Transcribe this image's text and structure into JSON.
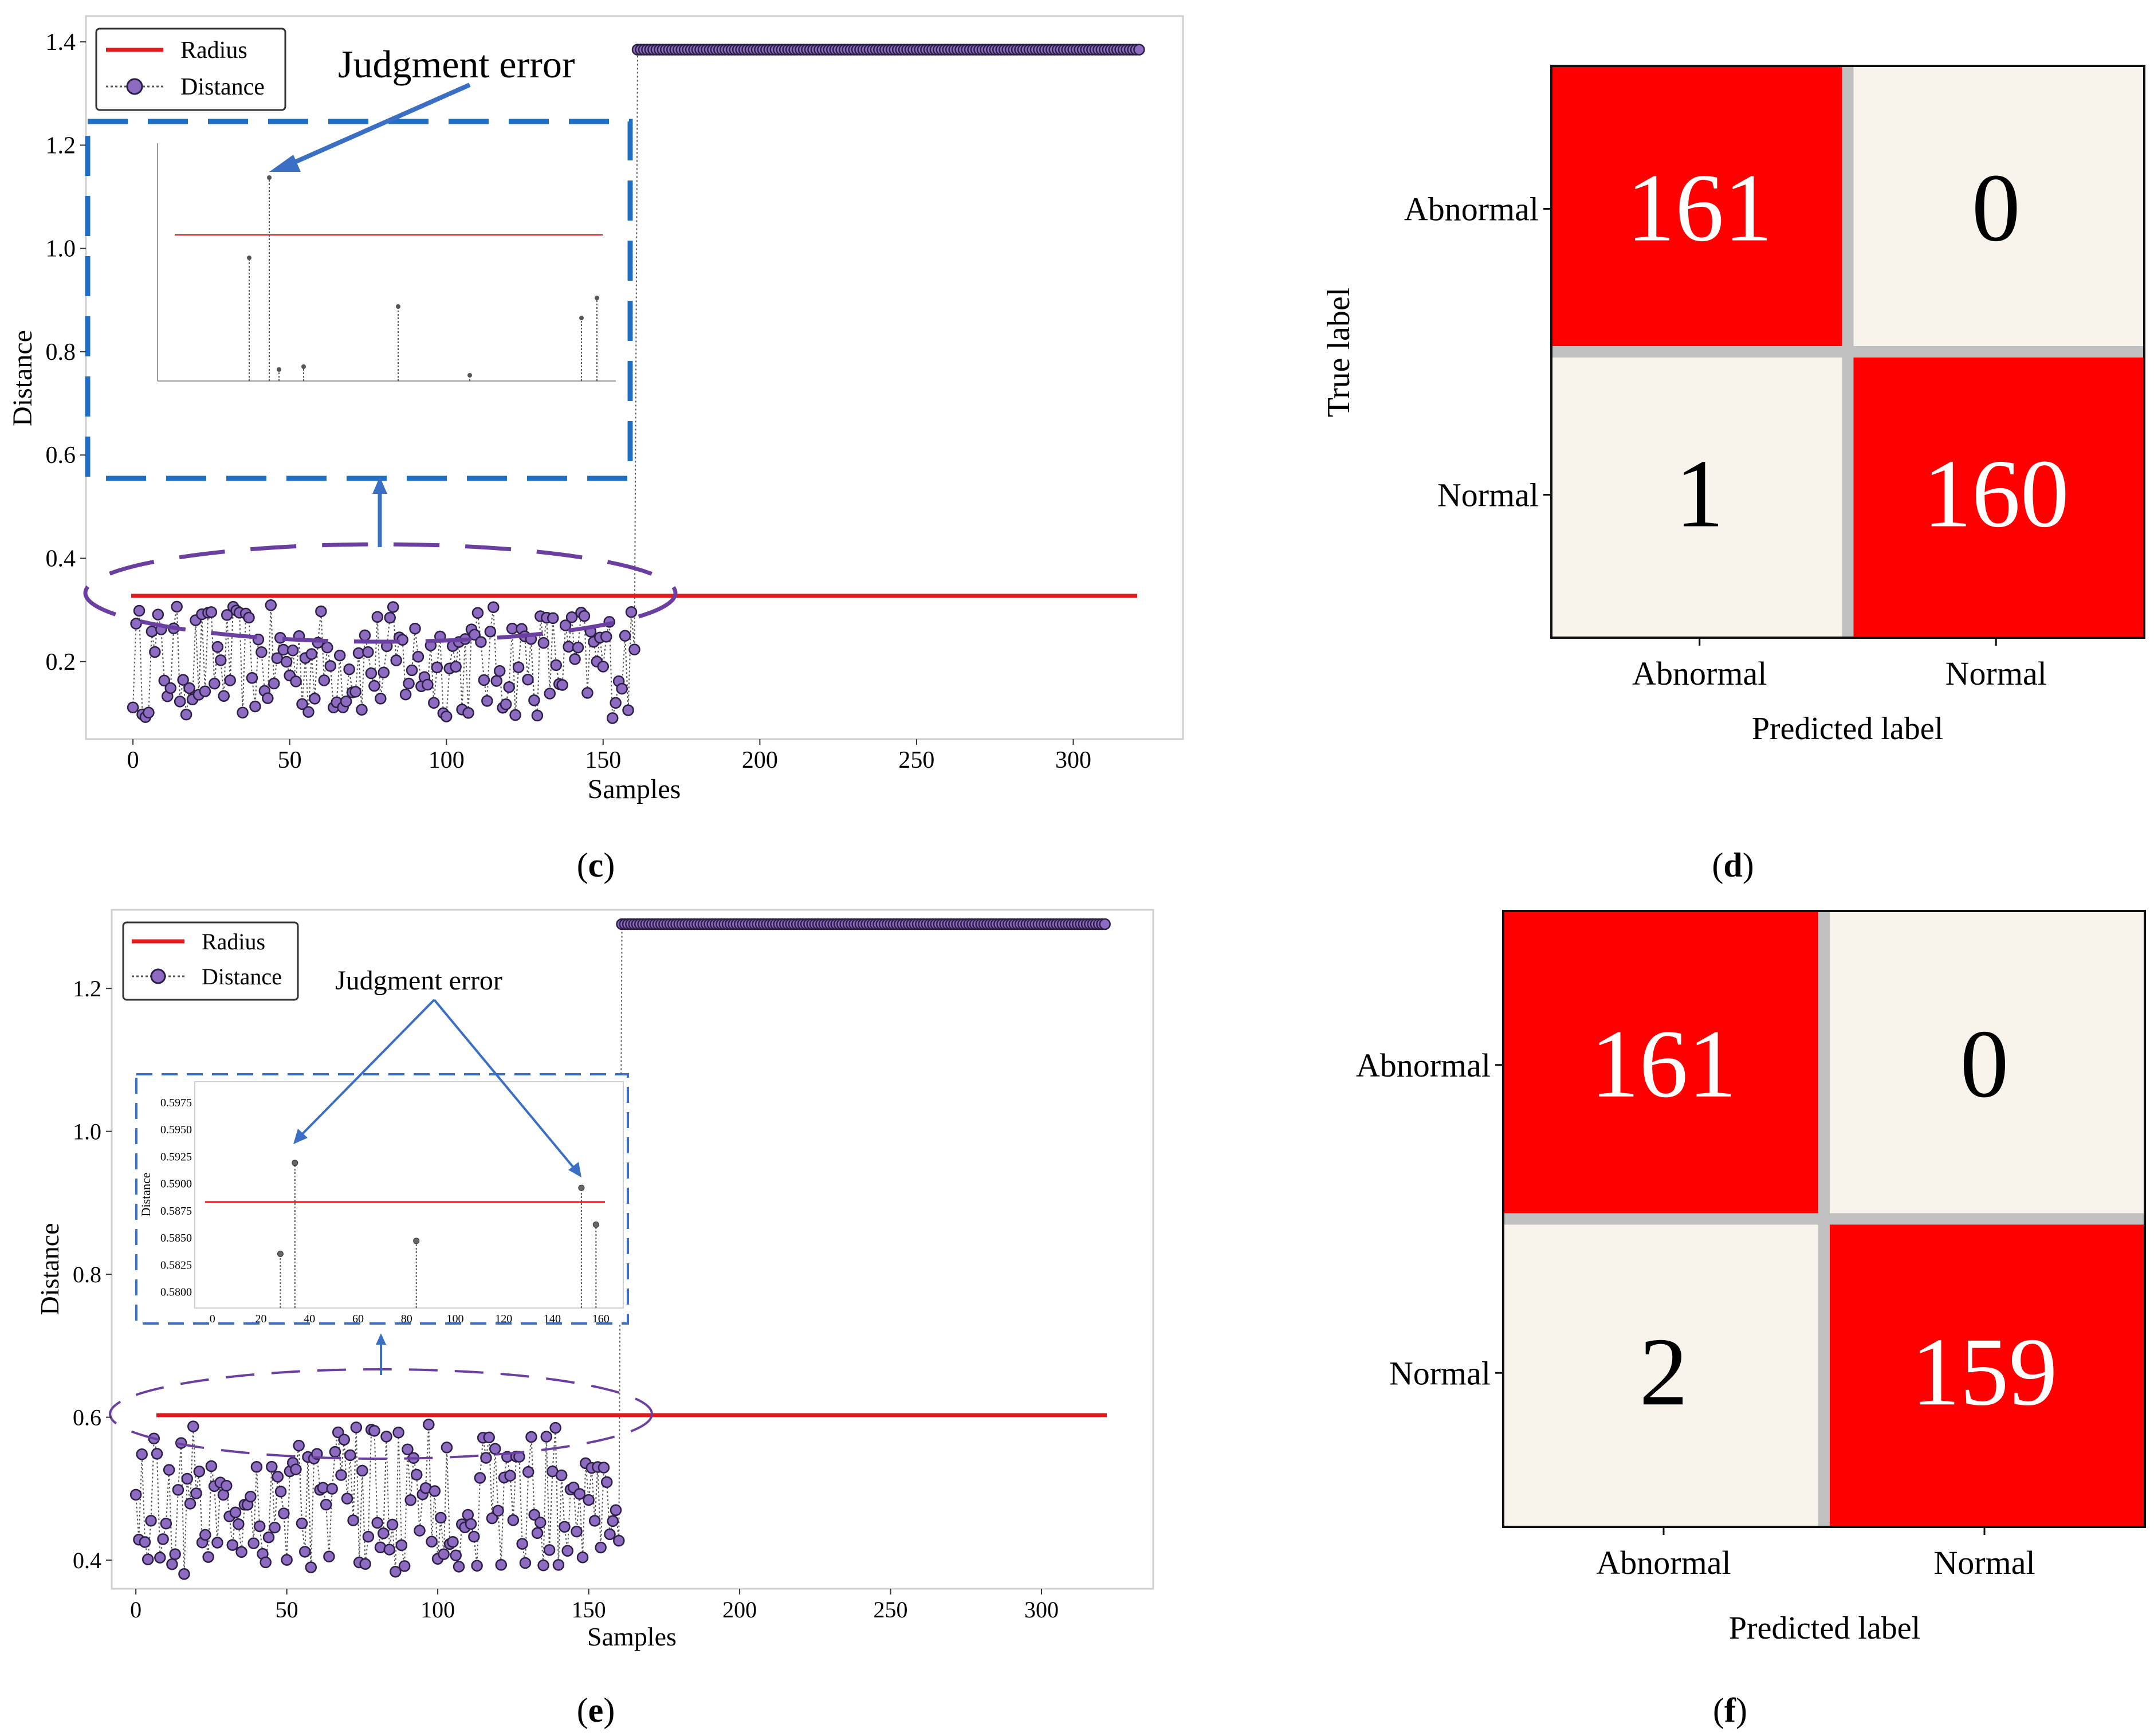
{
  "panels": {
    "c": {
      "label_prefix": "(",
      "label_letter": "c",
      "label_suffix": ")",
      "xlabel": "Samples",
      "ylabel": "Distance",
      "xticks": [
        "0",
        "50",
        "100",
        "150",
        "200",
        "250",
        "300"
      ],
      "yticks": [
        "0.2",
        "0.4",
        "0.6",
        "0.8",
        "1.0",
        "1.2",
        "1.4"
      ],
      "legend": [
        "Radius",
        "Distance"
      ],
      "annotation": "Judgment error"
    },
    "d": {
      "label_prefix": "(",
      "label_letter": "d",
      "label_suffix": ")",
      "xlabel": "Predicted label",
      "ylabel": "True label",
      "classes": [
        "Abnormal",
        "Normal"
      ],
      "cells": [
        [
          "161",
          "0"
        ],
        [
          "1",
          "160"
        ]
      ]
    },
    "e": {
      "label_prefix": "(",
      "label_letter": "e",
      "label_suffix": ")",
      "xlabel": "Samples",
      "ylabel": "Distance",
      "xticks": [
        "0",
        "50",
        "100",
        "150",
        "200",
        "250",
        "300"
      ],
      "yticks": [
        "0.4",
        "0.6",
        "0.8",
        "1.0",
        "1.2"
      ],
      "legend": [
        "Radius",
        "Distance"
      ],
      "annotation": "Judgment error",
      "inset": {
        "ylabel": "Distance",
        "xticks": [
          "0",
          "20",
          "40",
          "60",
          "80",
          "100",
          "120",
          "140",
          "160"
        ],
        "yticks": [
          "0.5800",
          "0.5825",
          "0.5850",
          "0.5875",
          "0.5900",
          "0.5925",
          "0.5950",
          "0.5975"
        ]
      }
    },
    "f": {
      "label_prefix": "(",
      "label_letter": "f",
      "label_suffix": ")",
      "xlabel": "Predicted label",
      "ylabel": "",
      "classes": [
        "Abnormal",
        "Normal"
      ],
      "cells": [
        [
          "161",
          "0"
        ],
        [
          "2",
          "159"
        ]
      ]
    }
  },
  "colors": {
    "radius": "#e31a1c",
    "distance_fill": "#8c6bc0",
    "distance_edge": "#2b1f45",
    "highlight_box": "#1f6fc4",
    "ellipse": "#6a3fa0",
    "cell_hot": "#ff0000",
    "cell_cold": "#f8f4ec",
    "grid_gap": "#c0c0c0"
  },
  "chart_data": [
    {
      "type": "scatter",
      "xlabel": "Samples",
      "ylabel": "Distance",
      "xlim": [
        -15,
        335
      ],
      "ylim": [
        0.05,
        1.45
      ],
      "series": [
        {
          "name": "Radius",
          "type": "line",
          "x": [
            0,
            322
          ],
          "y": [
            0.303,
            0.303
          ]
        },
        {
          "name": "Distance",
          "type": "scatter+line",
          "normal_count": 161,
          "normal_range": [
            0.09,
            0.31
          ],
          "abnormal_count": 161,
          "abnormal_value": 1.385
        }
      ]
    },
    {
      "type": "heatmap",
      "xlabel": "Predicted label",
      "ylabel": "True label",
      "categories": [
        "Abnormal",
        "Normal"
      ],
      "values": [
        [
          161,
          0
        ],
        [
          1,
          160
        ]
      ]
    },
    {
      "type": "scatter",
      "xlabel": "Samples",
      "ylabel": "Distance",
      "xlim": [
        -8,
        337
      ],
      "ylim": [
        0.36,
        1.31
      ],
      "series": [
        {
          "name": "Radius",
          "type": "line",
          "x": [
            0,
            322
          ],
          "y": [
            0.588,
            0.588
          ]
        },
        {
          "name": "Distance",
          "type": "scatter+line",
          "normal_count": 161,
          "normal_range": [
            0.38,
            0.59
          ],
          "abnormal_count": 161,
          "abnormal_value": 1.29
        }
      ]
    },
    {
      "type": "heatmap",
      "xlabel": "Predicted label",
      "ylabel": "",
      "categories": [
        "Abnormal",
        "Normal"
      ],
      "values": [
        [
          161,
          0
        ],
        [
          2,
          159
        ]
      ]
    }
  ]
}
